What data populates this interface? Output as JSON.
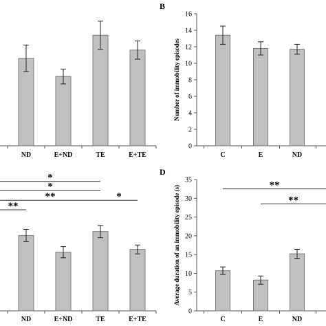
{
  "chart_data": [
    {
      "type": "bar",
      "panel": "",
      "ylabel": "",
      "categories": [
        "ND",
        "E+ND",
        "TE",
        "E+TE"
      ],
      "values": [
        10.6,
        8.4,
        13.4,
        11.6
      ],
      "errors": [
        1.6,
        0.9,
        1.7,
        1.1
      ],
      "ylim": [
        0,
        16
      ],
      "yticks": [],
      "significance": []
    },
    {
      "type": "bar",
      "panel": "B",
      "ylabel": "Number of immobility episodes",
      "categories": [
        "C",
        "E",
        "ND"
      ],
      "values": [
        13.4,
        11.8,
        11.7
      ],
      "errors": [
        1.1,
        0.8,
        0.6
      ],
      "ylim": [
        0,
        16
      ],
      "yticks": [
        0,
        2,
        4,
        6,
        8,
        10,
        12,
        14,
        16
      ],
      "significance": []
    },
    {
      "type": "bar",
      "panel": "",
      "ylabel": "",
      "categories": [
        "ND",
        "E+ND",
        "TE",
        "E+TE"
      ],
      "values": [
        13.5,
        10.5,
        14.2,
        11.0
      ],
      "errors": [
        1.1,
        1.0,
        1.1,
        0.8
      ],
      "ylim": [
        0,
        25
      ],
      "yticks": [],
      "significance": [
        {
          "label": "*",
          "from": "left",
          "to": "TE",
          "y": 23.2
        },
        {
          "label": "*",
          "from": "left",
          "to": "TE",
          "y": 21.6
        },
        {
          "label": "**",
          "from": "left",
          "to": "TE",
          "y": 19.8
        },
        {
          "label": "*",
          "from": "TE",
          "to": "E+TE",
          "y": 19.8
        },
        {
          "label": "**",
          "from": "left",
          "to": "ND",
          "y": 18.1
        }
      ]
    },
    {
      "type": "bar",
      "panel": "D",
      "ylabel": "Average duration of an immobility episode (s)",
      "categories": [
        "C",
        "E",
        "ND"
      ],
      "values": [
        10.7,
        8.2,
        15.2
      ],
      "errors": [
        1.0,
        1.1,
        1.2
      ],
      "ylim": [
        0,
        35
      ],
      "yticks": [
        0,
        5,
        10,
        15,
        20,
        25,
        30,
        35
      ],
      "significance": [
        {
          "label": "**",
          "from": "C",
          "to": "right",
          "y": 32.5
        },
        {
          "label": "**",
          "from": "E",
          "to": "right",
          "y": 28.5
        }
      ]
    }
  ]
}
